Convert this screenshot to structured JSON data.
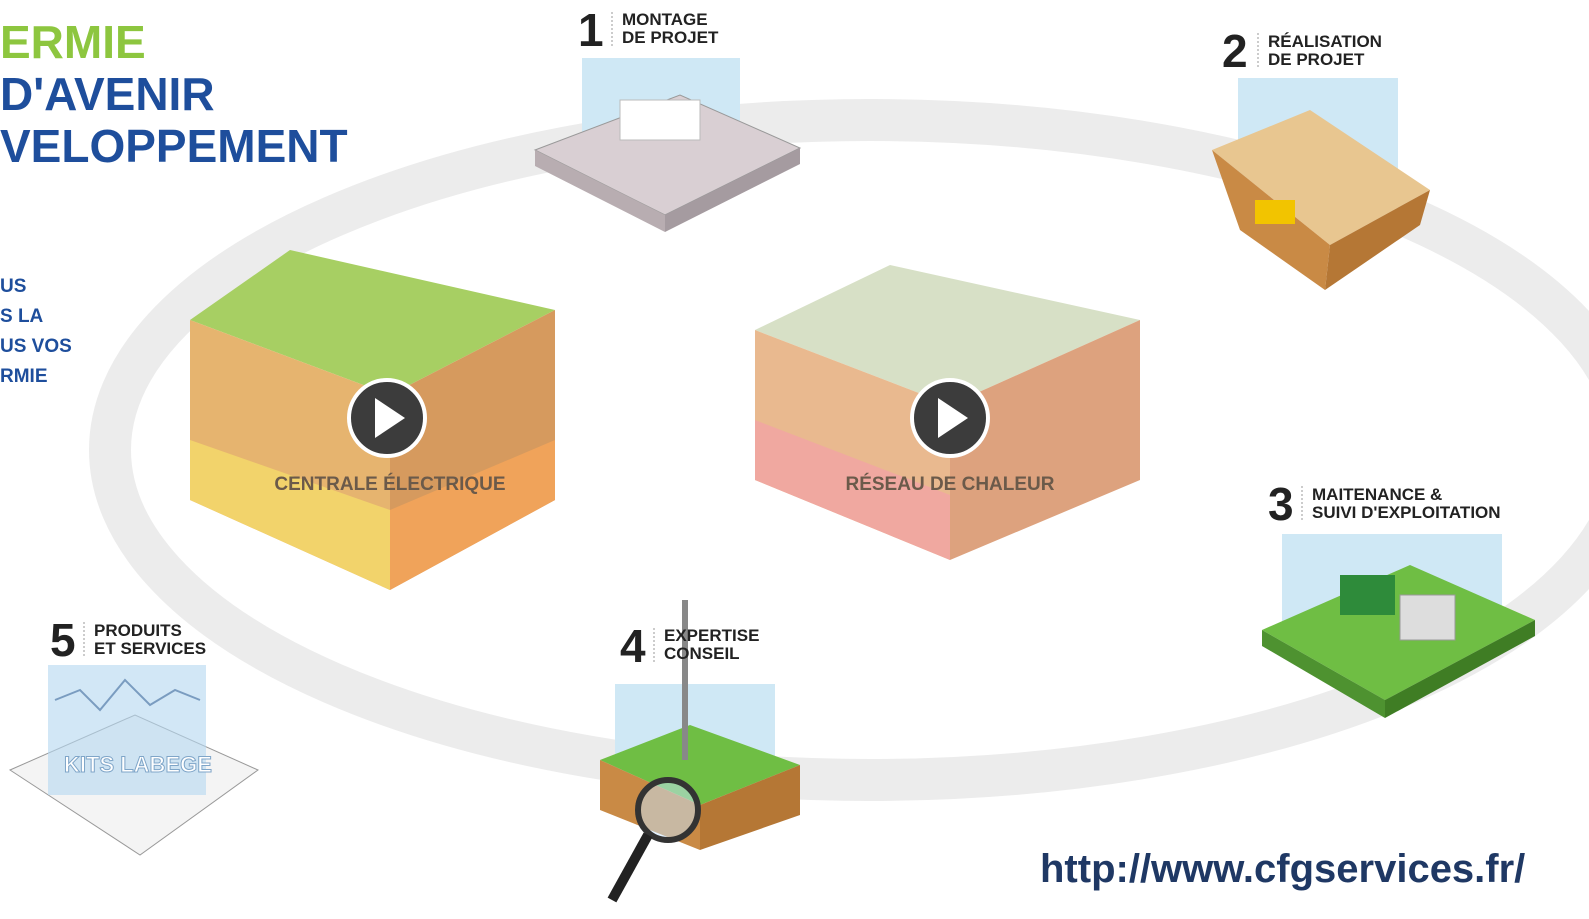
{
  "header": {
    "lines": [
      "ERMIE",
      "D'AVENIR",
      "VELOPPEMENT"
    ]
  },
  "intro": {
    "lines": [
      "US",
      "S LA",
      "US VOS",
      "RMIE"
    ]
  },
  "steps": [
    {
      "number": "1",
      "lines": [
        "MONTAGE",
        "DE PROJET"
      ]
    },
    {
      "number": "2",
      "lines": [
        "RÉALISATION",
        "DE PROJET"
      ]
    },
    {
      "number": "3",
      "lines": [
        "MAITENANCE &",
        "SUIVI D'EXPLOITATION"
      ]
    },
    {
      "number": "4",
      "lines": [
        "EXPERTISE",
        "CONSEIL"
      ]
    },
    {
      "number": "5",
      "lines": [
        "PRODUITS",
        "ET SERVICES"
      ],
      "product": "KITS LABEGE"
    }
  ],
  "videos": [
    {
      "label": "CENTRALE ÉLECTRIQUE"
    },
    {
      "label": "RÉSEAU DE CHALEUR"
    }
  ],
  "footer": {
    "url": "http://www.cfgservices.fr/"
  }
}
